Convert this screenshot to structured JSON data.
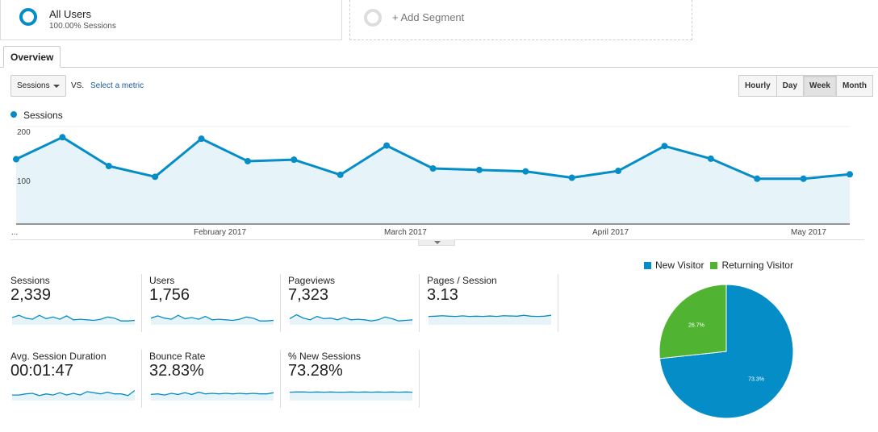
{
  "segments": {
    "active": {
      "title": "All Users",
      "subtitle": "100.00% Sessions"
    },
    "add_label": "+ Add Segment"
  },
  "tabs": [
    "Overview"
  ],
  "controls": {
    "metric_selected": "Sessions",
    "vs_label": "VS.",
    "select_metric_link": "Select a metric",
    "time_buttons": [
      "Hourly",
      "Day",
      "Week",
      "Month"
    ],
    "time_active": "Week"
  },
  "colors": {
    "primary": "#058dc7",
    "secondary": "#50b432",
    "fill": "#e6f4fa"
  },
  "chart_data": {
    "type": "line",
    "legend": [
      "Sessions"
    ],
    "series": [
      {
        "name": "Sessions",
        "values": [
          133,
          178,
          119,
          97,
          175,
          129,
          132,
          101,
          161,
          114,
          111,
          108,
          95,
          109,
          160,
          134,
          93,
          93,
          102
        ]
      }
    ],
    "x_tick_labels": [
      "...",
      "February 2017",
      "March 2017",
      "April 2017",
      "May 2017"
    ],
    "y_tick_labels": [
      "200",
      "100"
    ],
    "ylim": [
      0,
      200
    ],
    "grid": true
  },
  "metrics": [
    {
      "label": "Sessions",
      "value": "2,339",
      "spark": [
        0.5,
        0.7,
        0.45,
        0.35,
        0.7,
        0.4,
        0.55,
        0.35,
        0.65,
        0.3,
        0.35,
        0.3,
        0.25,
        0.35,
        0.55,
        0.45,
        0.2,
        0.2,
        0.25
      ]
    },
    {
      "label": "Users",
      "value": "1,756",
      "spark": [
        0.45,
        0.65,
        0.45,
        0.35,
        0.7,
        0.4,
        0.5,
        0.35,
        0.6,
        0.3,
        0.35,
        0.3,
        0.25,
        0.35,
        0.55,
        0.45,
        0.2,
        0.2,
        0.25
      ]
    },
    {
      "label": "Pageviews",
      "value": "7,323",
      "spark": [
        0.4,
        0.75,
        0.45,
        0.3,
        0.6,
        0.4,
        0.45,
        0.3,
        0.5,
        0.3,
        0.35,
        0.3,
        0.2,
        0.3,
        0.55,
        0.4,
        0.2,
        0.25,
        0.3
      ]
    },
    {
      "label": "Pages / Session",
      "value": "3.13",
      "spark": [
        0.6,
        0.62,
        0.66,
        0.62,
        0.6,
        0.65,
        0.6,
        0.62,
        0.6,
        0.64,
        0.6,
        0.66,
        0.64,
        0.62,
        0.7,
        0.62,
        0.6,
        0.62,
        0.7
      ]
    },
    {
      "label": "Avg. Session Duration",
      "value": "00:01:47",
      "spark": [
        0.35,
        0.35,
        0.45,
        0.5,
        0.3,
        0.45,
        0.35,
        0.55,
        0.35,
        0.5,
        0.35,
        0.65,
        0.55,
        0.45,
        0.6,
        0.45,
        0.45,
        0.3,
        0.75
      ]
    },
    {
      "label": "Bounce Rate",
      "value": "32.83%",
      "spark": [
        0.4,
        0.45,
        0.35,
        0.5,
        0.4,
        0.55,
        0.4,
        0.6,
        0.45,
        0.5,
        0.45,
        0.5,
        0.45,
        0.5,
        0.45,
        0.5,
        0.45,
        0.45,
        0.55
      ]
    },
    {
      "label": "% New Sessions",
      "value": "73.28%",
      "spark": [
        0.6,
        0.62,
        0.62,
        0.6,
        0.62,
        0.6,
        0.62,
        0.6,
        0.6,
        0.62,
        0.6,
        0.62,
        0.6,
        0.62,
        0.6,
        0.62,
        0.6,
        0.62,
        0.6
      ]
    }
  ],
  "pie_data": {
    "legend": [
      "New Visitor",
      "Returning Visitor"
    ],
    "slices": [
      {
        "name": "New Visitor",
        "value": 73.3,
        "label": "73.3%"
      },
      {
        "name": "Returning Visitor",
        "value": 26.7,
        "label": "26.7%"
      }
    ]
  }
}
